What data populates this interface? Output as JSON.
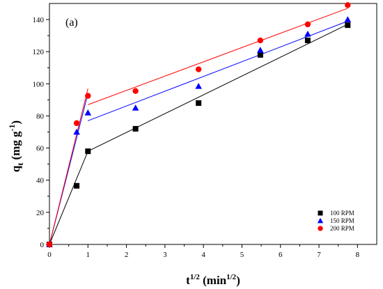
{
  "chart_data": {
    "type": "scatter",
    "panel_label": "(a)",
    "xlabel": {
      "base": "t",
      "sup": "1/2",
      "unit_open": " (min",
      "unit_sup": "1/2",
      "unit_close": ")"
    },
    "ylabel": {
      "base": "q",
      "sub": "t",
      "unit_open": " (mg g",
      "unit_sup": "-1",
      "unit_close": ")"
    },
    "xlim": [
      0,
      8.5
    ],
    "ylim": [
      0,
      150
    ],
    "xticks": [
      0,
      1,
      2,
      3,
      4,
      5,
      6,
      7,
      8
    ],
    "yticks": [
      0,
      20,
      40,
      60,
      80,
      100,
      120,
      140
    ],
    "grid": false,
    "legend_position": "bottom-right",
    "series": [
      {
        "name": "100 RPM",
        "marker": "square",
        "color": "#000000",
        "line_color": "#000000",
        "x": [
          0,
          0.707,
          1.0,
          2.236,
          3.873,
          5.477,
          6.708,
          7.746
        ],
        "y": [
          0,
          36.5,
          58,
          72,
          88,
          118,
          127,
          136.5
        ],
        "fit_lines": [
          [
            [
              0,
              0
            ],
            [
              1.0,
              58
            ]
          ],
          [
            [
              1.0,
              58
            ],
            [
              7.746,
              137
            ]
          ]
        ]
      },
      {
        "name": "150 RPM",
        "marker": "triangle",
        "color": "#0000ff",
        "line_color": "#0000ff",
        "x": [
          0,
          0.707,
          1.0,
          2.236,
          3.873,
          5.477,
          6.708,
          7.746
        ],
        "y": [
          0,
          70,
          82,
          85,
          98.5,
          121,
          131,
          140
        ],
        "fit_lines": [
          [
            [
              0,
              0
            ],
            [
              1.0,
              94
            ]
          ],
          [
            [
              1.0,
              77
            ],
            [
              7.746,
              139
            ]
          ]
        ]
      },
      {
        "name": "200 RPM",
        "marker": "circle",
        "color": "#ff0000",
        "line_color": "#ff0000",
        "x": [
          0,
          0.707,
          1.0,
          2.236,
          3.873,
          5.477,
          6.708,
          7.746
        ],
        "y": [
          0,
          75.5,
          92.5,
          95.5,
          109,
          127,
          137,
          149
        ],
        "fit_lines": [
          [
            [
              0,
              0
            ],
            [
              1.0,
              97
            ]
          ],
          [
            [
              1.0,
              87
            ],
            [
              7.746,
              147
            ]
          ]
        ]
      }
    ]
  }
}
